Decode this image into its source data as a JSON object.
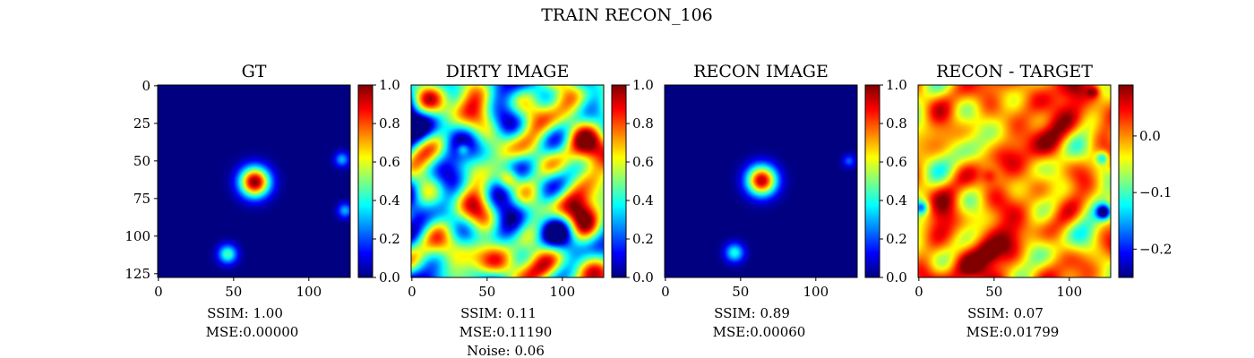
{
  "figure": {
    "title": "TRAIN RECON_106"
  },
  "chart_data": [
    {
      "type": "heatmap",
      "title": "GT",
      "x_ticks": [
        0,
        50,
        100
      ],
      "y_ticks": [
        0,
        25,
        50,
        75,
        100,
        125
      ],
      "image_extent": [
        0,
        128
      ],
      "colormap": "jet",
      "colorbar": {
        "min": 0.0,
        "max": 1.0,
        "ticks": [
          "0.0",
          "0.2",
          "0.4",
          "0.6",
          "0.8",
          "1.0"
        ]
      },
      "features": [
        {
          "kind": "gaussian",
          "x": 64,
          "y": 64,
          "sigma": 7,
          "value": 1.0
        },
        {
          "kind": "gaussian",
          "x": 46,
          "y": 112,
          "sigma": 4.5,
          "value": 0.45
        },
        {
          "kind": "gaussian",
          "x": 122,
          "y": 49,
          "sigma": 3.5,
          "value": 0.3
        },
        {
          "kind": "gaussian",
          "x": 124,
          "y": 83,
          "sigma": 3.5,
          "value": 0.3
        }
      ],
      "caption": [
        "SSIM: 1.00",
        "MSE:0.00000"
      ]
    },
    {
      "type": "heatmap",
      "title": "DIRTY IMAGE",
      "x_ticks": [
        0,
        50,
        100
      ],
      "y_ticks": [],
      "image_extent": [
        0,
        128
      ],
      "colormap": "jet",
      "colorbar": {
        "min": 0.0,
        "max": 1.0,
        "ticks": [
          "0.0",
          "0.2",
          "0.4",
          "0.6",
          "0.8",
          "1.0"
        ]
      },
      "features": [
        {
          "kind": "noise",
          "level": 0.45,
          "amplitude": 0.28
        },
        {
          "kind": "gaussian",
          "x": 64,
          "y": 62,
          "sigma": 5,
          "value": 0.55
        },
        {
          "kind": "gaussian",
          "x": 34,
          "y": 42,
          "sigma": 3,
          "value": 0.3
        }
      ],
      "caption": [
        "SSIM: 0.11",
        "MSE:0.11190",
        "Noise: 0.06"
      ]
    },
    {
      "type": "heatmap",
      "title": "RECON IMAGE",
      "x_ticks": [
        0,
        50,
        100
      ],
      "y_ticks": [],
      "image_extent": [
        0,
        128
      ],
      "colormap": "jet",
      "colorbar": {
        "min": 0.0,
        "max": 1.0,
        "ticks": [
          "0.0",
          "0.2",
          "0.4",
          "0.6",
          "0.8",
          "1.0"
        ]
      },
      "features": [
        {
          "kind": "gaussian",
          "x": 64,
          "y": 63,
          "sigma": 7,
          "value": 0.95
        },
        {
          "kind": "gaussian",
          "x": 46,
          "y": 111,
          "sigma": 4.5,
          "value": 0.4
        },
        {
          "kind": "gaussian",
          "x": 122,
          "y": 50,
          "sigma": 3,
          "value": 0.22
        }
      ],
      "caption": [
        "SSIM: 0.89",
        "MSE:0.00060"
      ]
    },
    {
      "type": "heatmap",
      "title": "RECON - TARGET",
      "x_ticks": [
        0,
        50,
        100
      ],
      "y_ticks": [],
      "image_extent": [
        0,
        128
      ],
      "colormap": "jet",
      "colorbar": {
        "min": -0.25,
        "max": 0.09,
        "ticks": [
          "0.0",
          "−0.1",
          "−0.2"
        ],
        "tick_values": [
          0.0,
          -0.1,
          -0.2
        ]
      },
      "features": [
        {
          "kind": "noise",
          "level": 0.0,
          "amplitude": 0.05
        },
        {
          "kind": "gaussian",
          "x": 123,
          "y": 84,
          "sigma": 3.5,
          "value": -0.22
        },
        {
          "kind": "gaussian",
          "x": 122,
          "y": 48,
          "sigma": 3,
          "value": -0.12
        },
        {
          "kind": "gaussian",
          "x": 2,
          "y": 81,
          "sigma": 3,
          "value": -0.12
        },
        {
          "kind": "gaussian",
          "x": 46,
          "y": 111,
          "sigma": 4,
          "value": 0.06
        },
        {
          "kind": "gaussian",
          "x": 47,
          "y": 60,
          "sigma": 3.5,
          "value": 0.05
        },
        {
          "kind": "gaussian",
          "x": 116,
          "y": 4,
          "sigma": 3,
          "value": 0.08
        }
      ],
      "caption": [
        "SSIM: 0.07",
        "MSE:0.01799"
      ]
    }
  ]
}
